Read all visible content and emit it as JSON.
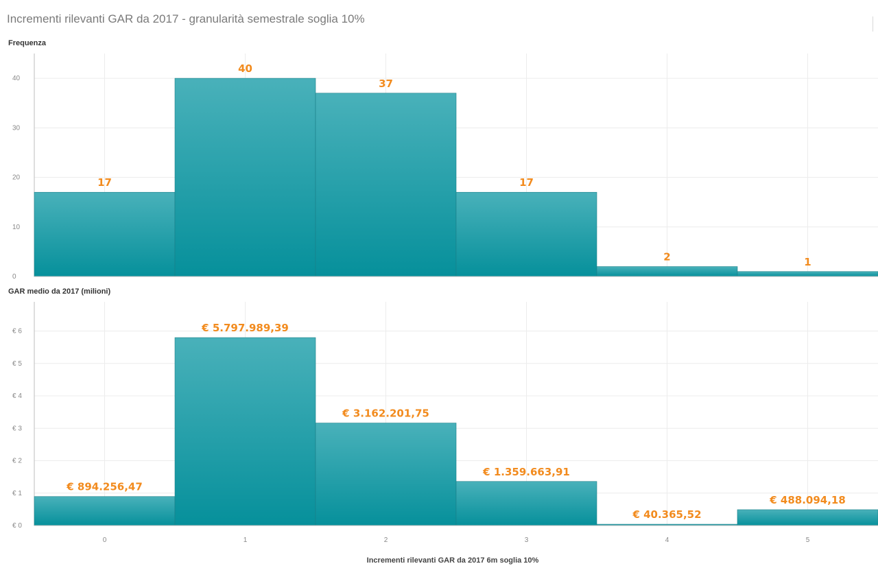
{
  "title": "Incrementi rilevanti GAR da 2017 - granularità semestrale soglia 10%",
  "colors": {
    "bar": "#1e98a2",
    "label": "#f28b1e",
    "grid": "#ececec",
    "axis": "#bdbdbd"
  },
  "chart_data": [
    {
      "type": "bar",
      "ylabel": "Frequenza",
      "categories": [
        "0",
        "1",
        "2",
        "3",
        "4",
        "5"
      ],
      "values": [
        17,
        40,
        37,
        17,
        2,
        1
      ],
      "value_labels": [
        "17",
        "40",
        "37",
        "17",
        "2",
        "1"
      ],
      "ylim": [
        0,
        45
      ],
      "yticks": [
        0,
        10,
        20,
        30,
        40
      ],
      "ytick_labels": [
        "0",
        "10",
        "20",
        "30",
        "40"
      ],
      "grid": true
    },
    {
      "type": "bar",
      "ylabel": "GAR medio da 2017 (milioni)",
      "categories": [
        "0",
        "1",
        "2",
        "3",
        "4",
        "5"
      ],
      "values": [
        894256.47,
        5797989.39,
        3162201.75,
        1359663.91,
        40365.52,
        488094.18
      ],
      "value_labels": [
        "€ 894.256,47",
        "€ 5.797.989,39",
        "€ 3.162.201,75",
        "€ 1.359.663,91",
        "€ 40.365,52",
        "€ 488.094,18"
      ],
      "ylim": [
        0,
        6900000
      ],
      "yticks": [
        0,
        1000000,
        2000000,
        3000000,
        4000000,
        5000000,
        6000000
      ],
      "ytick_labels": [
        "€ 0",
        "€ 1",
        "€ 2",
        "€ 3",
        "€ 4",
        "€ 5",
        "€ 6"
      ],
      "xlabel": "Incrementi rilevanti GAR da 2017 6m soglia 10%",
      "grid": true
    }
  ]
}
